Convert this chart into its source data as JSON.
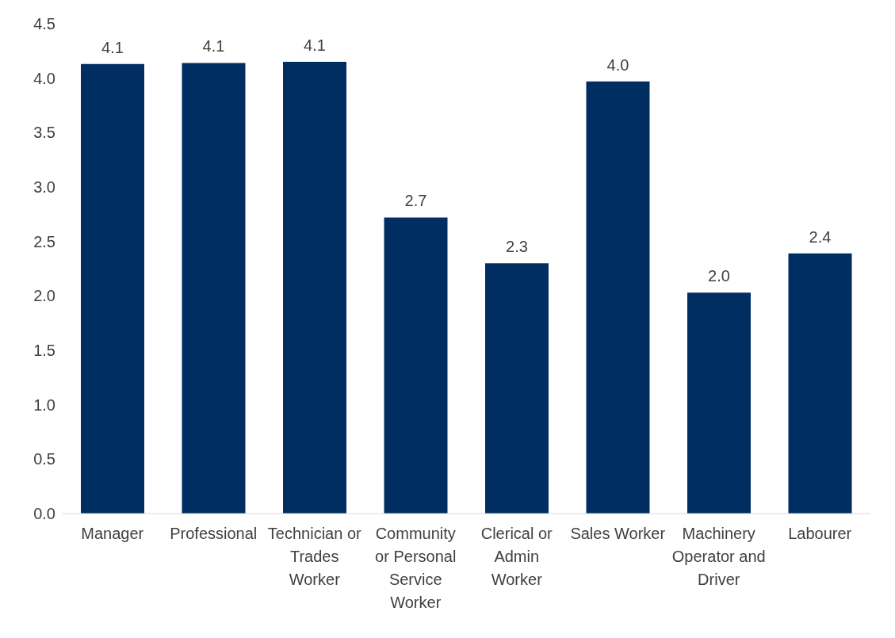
{
  "chart_data": {
    "type": "bar",
    "categories": [
      "Manager",
      "Professional",
      "Technician or Trades Worker",
      "Community or Personal Service Worker",
      "Clerical or Admin Worker",
      "Sales Worker",
      "Machinery Operator and Driver",
      "Labourer"
    ],
    "values": [
      4.13,
      4.14,
      4.15,
      2.72,
      2.3,
      3.97,
      2.03,
      2.39
    ],
    "value_labels": [
      "4.1",
      "4.1",
      "4.1",
      "2.7",
      "2.3",
      "4.0",
      "2.0",
      "2.4"
    ],
    "color": "#002d62",
    "ylim": [
      0,
      4.5
    ],
    "yticks": [
      {
        "value": 0,
        "label": "0.0"
      },
      {
        "value": 0.5,
        "label": "0.5"
      },
      {
        "value": 1,
        "label": "1.0"
      },
      {
        "value": 1.5,
        "label": "1.5"
      },
      {
        "value": 2,
        "label": "2.0"
      },
      {
        "value": 2.5,
        "label": "2.5"
      },
      {
        "value": 3,
        "label": "3.0"
      },
      {
        "value": 3.5,
        "label": "3.5"
      },
      {
        "value": 4,
        "label": "4.0"
      },
      {
        "value": 4.5,
        "label": "4.5"
      }
    ],
    "grid": false,
    "legend": false
  }
}
